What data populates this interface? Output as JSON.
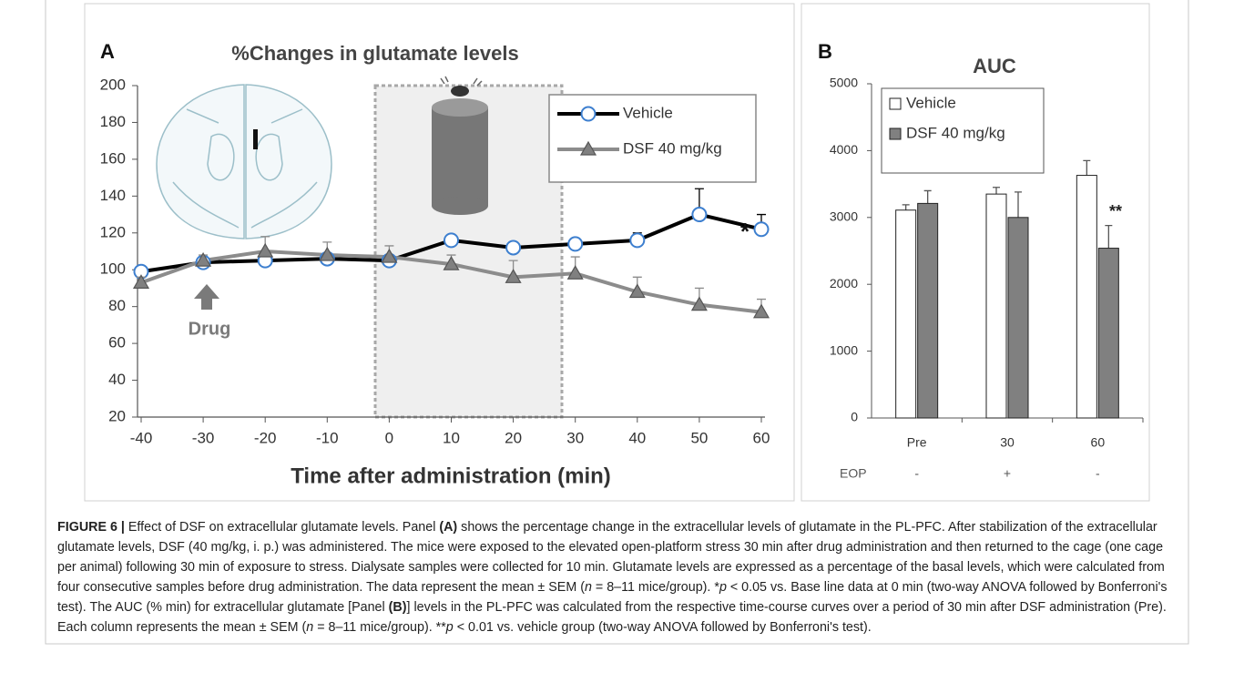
{
  "chart_data": [
    {
      "type": "line",
      "panel": "A",
      "title": "%Changes in glutamate levels",
      "xlabel": "Time after administration (min)",
      "x": [
        -40,
        -30,
        -20,
        -10,
        0,
        10,
        20,
        30,
        40,
        50,
        60
      ],
      "xlim": [
        -40,
        60
      ],
      "xticks": [
        -40,
        -30,
        -20,
        -10,
        0,
        10,
        20,
        30,
        40,
        50,
        60
      ],
      "ylim": [
        20,
        200
      ],
      "yticks": [
        20,
        40,
        60,
        80,
        100,
        120,
        140,
        160,
        180,
        200
      ],
      "series": [
        {
          "name": "Vehicle",
          "color": "#000000",
          "marker": "circle",
          "marker_color": "#3d7fcf",
          "values": [
            99,
            104,
            105,
            106,
            105,
            116,
            112,
            114,
            116,
            130,
            122
          ],
          "errors": [
            2,
            3,
            3,
            3,
            3,
            3,
            3,
            3,
            4,
            14,
            8
          ]
        },
        {
          "name": "DSF 40 mg/kg",
          "color": "#8c8c8c",
          "marker": "triangle",
          "marker_color": "#808080",
          "values": [
            93,
            105,
            110,
            108,
            107,
            103,
            96,
            98,
            88,
            81,
            77
          ],
          "errors": [
            3,
            3,
            8,
            7,
            6,
            5,
            9,
            9,
            8,
            9,
            7
          ]
        }
      ],
      "annotations": [
        "Drug",
        "*"
      ]
    },
    {
      "type": "bar",
      "panel": "B",
      "title": "AUC",
      "categories": [
        "Pre",
        "30",
        "60"
      ],
      "ylim": [
        0,
        5000
      ],
      "yticks": [
        0,
        1000,
        2000,
        3000,
        4000,
        5000
      ],
      "series": [
        {
          "name": "Vehicle",
          "color": "#ffffff",
          "values": [
            3110,
            3350,
            3630
          ],
          "errors": [
            80,
            100,
            220
          ]
        },
        {
          "name": "DSF 40 mg/kg",
          "color": "#808080",
          "values": [
            3210,
            3000,
            2540
          ],
          "errors": [
            190,
            380,
            340
          ]
        }
      ],
      "row": {
        "label": "EOP",
        "values": [
          "-",
          "+",
          "-"
        ]
      },
      "annotations": [
        "**"
      ]
    }
  ],
  "caption": {
    "parts": [
      "FIGURE 6 |",
      " Effect of DSF on extracellular glutamate levels. Panel ",
      "(A)",
      " shows the percentage change in the extracellular levels of glutamate in the PL-PFC. After stabilization of the extracellular glutamate levels, DSF (40 mg/kg, i. p.) was administered. The mice were exposed to the elevated open-platform stress 30 min after drug administration and then returned to the cage (one cage per animal) following 30 min of exposure to stress. Dialysate samples were collected for 10 min. Glutamate levels are expressed as a percentage of the basal levels, which were calculated from four consecutive samples before drug administration. The data represent the mean ± SEM (",
      "n",
      " = 8–11 mice/group). *",
      "p",
      " < 0.05 vs. Base line data at 0 min (two-way ANOVA followed by Bonferroni's test). The AUC (% min) for extracellular glutamate [Panel ",
      "(B)",
      "] levels in the PL-PFC was calculated from the respective time-course curves over a period of 30 min after DSF administration (Pre). Each column represents the mean ± SEM (",
      "n",
      " = 8–11 mice/group). **",
      "p",
      " < 0.01 vs. vehicle group (two-way ANOVA followed by Bonferroni's test)."
    ]
  }
}
